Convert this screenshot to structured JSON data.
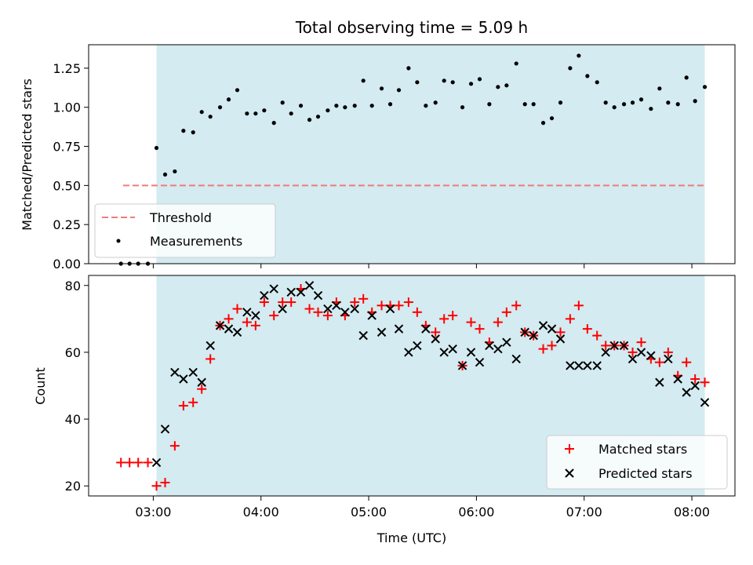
{
  "chart_data": [
    {
      "type": "scatter",
      "title": "Total observing time = 5.09 h",
      "xlabel": "",
      "ylabel": "Matched/Predicted stars",
      "ylim": [
        0,
        1.4
      ],
      "yticks": [
        "0.00",
        "0.25",
        "0.50",
        "0.75",
        "1.00",
        "1.25"
      ],
      "shaded_span_hours": [
        3.03,
        8.12
      ],
      "shade_color": "#d3ebf1",
      "threshold": {
        "name": "Threshold",
        "value": 0.5,
        "x_start": 2.72,
        "x_end": 8.13,
        "color": "#f47a7a"
      },
      "series": [
        {
          "name": "Measurements",
          "color": "#000000",
          "x": [
            2.7,
            2.78,
            2.86,
            2.95,
            3.03,
            3.11,
            3.2,
            3.28,
            3.37,
            3.45,
            3.53,
            3.62,
            3.7,
            3.78,
            3.87,
            3.95,
            4.03,
            4.12,
            4.2,
            4.28,
            4.37,
            4.45,
            4.53,
            4.62,
            4.7,
            4.78,
            4.87,
            4.95,
            5.03,
            5.12,
            5.2,
            5.28,
            5.37,
            5.45,
            5.53,
            5.62,
            5.7,
            5.78,
            5.87,
            5.95,
            6.03,
            6.12,
            6.2,
            6.28,
            6.37,
            6.45,
            6.53,
            6.62,
            6.7,
            6.78,
            6.87,
            6.95,
            7.03,
            7.12,
            7.2,
            7.28,
            7.37,
            7.45,
            7.53,
            7.62,
            7.7,
            7.78,
            7.87,
            7.95,
            8.03,
            8.12
          ],
          "y": [
            0.0,
            0.0,
            0.0,
            0.0,
            0.74,
            0.57,
            0.59,
            0.85,
            0.84,
            0.97,
            0.94,
            1.0,
            1.05,
            1.11,
            0.96,
            0.96,
            0.98,
            0.9,
            1.03,
            0.96,
            1.01,
            0.92,
            0.94,
            0.98,
            1.01,
            1.0,
            1.01,
            1.17,
            1.01,
            1.12,
            1.02,
            1.11,
            1.25,
            1.16,
            1.01,
            1.03,
            1.17,
            1.16,
            1.0,
            1.15,
            1.18,
            1.02,
            1.13,
            1.14,
            1.28,
            1.02,
            1.02,
            0.9,
            0.93,
            1.03,
            1.25,
            1.33,
            1.2,
            1.16,
            1.03,
            1.0,
            1.02,
            1.03,
            1.05,
            0.99,
            1.12,
            1.03,
            1.02,
            1.19,
            1.04,
            1.13
          ]
        }
      ]
    },
    {
      "type": "scatter",
      "title": "",
      "xlabel": "Time (UTC)",
      "ylabel": "Count",
      "ylim": [
        17,
        83
      ],
      "yticks": [
        "20",
        "40",
        "60",
        "80"
      ],
      "xticks": [
        "03:00",
        "04:00",
        "05:00",
        "06:00",
        "07:00",
        "08:00"
      ],
      "xtick_hours": [
        3,
        4,
        5,
        6,
        7,
        8
      ],
      "xlim_hours": [
        2.4,
        8.4
      ],
      "shaded_span_hours": [
        3.03,
        8.12
      ],
      "shade_color": "#d3ebf1",
      "series": [
        {
          "name": "Matched stars",
          "marker": "plus",
          "color": "#ff0000",
          "x": [
            2.7,
            2.78,
            2.86,
            2.95,
            3.03,
            3.11,
            3.2,
            3.28,
            3.37,
            3.45,
            3.53,
            3.62,
            3.7,
            3.78,
            3.87,
            3.95,
            4.03,
            4.12,
            4.2,
            4.28,
            4.37,
            4.45,
            4.53,
            4.62,
            4.7,
            4.78,
            4.87,
            4.95,
            5.03,
            5.12,
            5.2,
            5.28,
            5.37,
            5.45,
            5.53,
            5.62,
            5.7,
            5.78,
            5.87,
            5.95,
            6.03,
            6.12,
            6.2,
            6.28,
            6.37,
            6.45,
            6.53,
            6.62,
            6.7,
            6.78,
            6.87,
            6.95,
            7.03,
            7.12,
            7.2,
            7.28,
            7.37,
            7.45,
            7.53,
            7.62,
            7.7,
            7.78,
            7.87,
            7.95,
            8.03,
            8.12
          ],
          "y": [
            27,
            27,
            27,
            27,
            20,
            21,
            32,
            44,
            45,
            49,
            58,
            68,
            70,
            73,
            69,
            68,
            75,
            71,
            75,
            75,
            79,
            73,
            72,
            71,
            75,
            71,
            75,
            76,
            72,
            74,
            74,
            74,
            75,
            72,
            68,
            66,
            70,
            71,
            56,
            69,
            67,
            63,
            69,
            72,
            74,
            66,
            65,
            61,
            62,
            66,
            70,
            74,
            67,
            65,
            62,
            62,
            62,
            60,
            63,
            58,
            57,
            60,
            53,
            57,
            52,
            51
          ]
        },
        {
          "name": "Predicted stars",
          "marker": "x",
          "color": "#000000",
          "x": [
            3.03,
            3.11,
            3.2,
            3.28,
            3.37,
            3.45,
            3.53,
            3.62,
            3.7,
            3.78,
            3.87,
            3.95,
            4.03,
            4.12,
            4.2,
            4.28,
            4.37,
            4.45,
            4.53,
            4.62,
            4.7,
            4.78,
            4.87,
            4.95,
            5.03,
            5.12,
            5.2,
            5.28,
            5.37,
            5.45,
            5.53,
            5.62,
            5.7,
            5.78,
            5.87,
            5.95,
            6.03,
            6.12,
            6.2,
            6.28,
            6.37,
            6.45,
            6.53,
            6.62,
            6.7,
            6.78,
            6.87,
            6.95,
            7.03,
            7.12,
            7.2,
            7.28,
            7.37,
            7.45,
            7.53,
            7.62,
            7.7,
            7.78,
            7.87,
            7.95,
            8.03,
            8.12
          ],
          "y": [
            27,
            37,
            54,
            52,
            54,
            51,
            62,
            68,
            67,
            66,
            72,
            71,
            77,
            79,
            73,
            78,
            78,
            80,
            77,
            73,
            74,
            72,
            73,
            65,
            71,
            66,
            73,
            67,
            60,
            62,
            67,
            64,
            60,
            61,
            56,
            60,
            57,
            62,
            61,
            63,
            58,
            66,
            65,
            68,
            67,
            64,
            56,
            56,
            56,
            56,
            60,
            62,
            62,
            58,
            60,
            59,
            51,
            58,
            52,
            48,
            50,
            45
          ]
        }
      ]
    }
  ]
}
